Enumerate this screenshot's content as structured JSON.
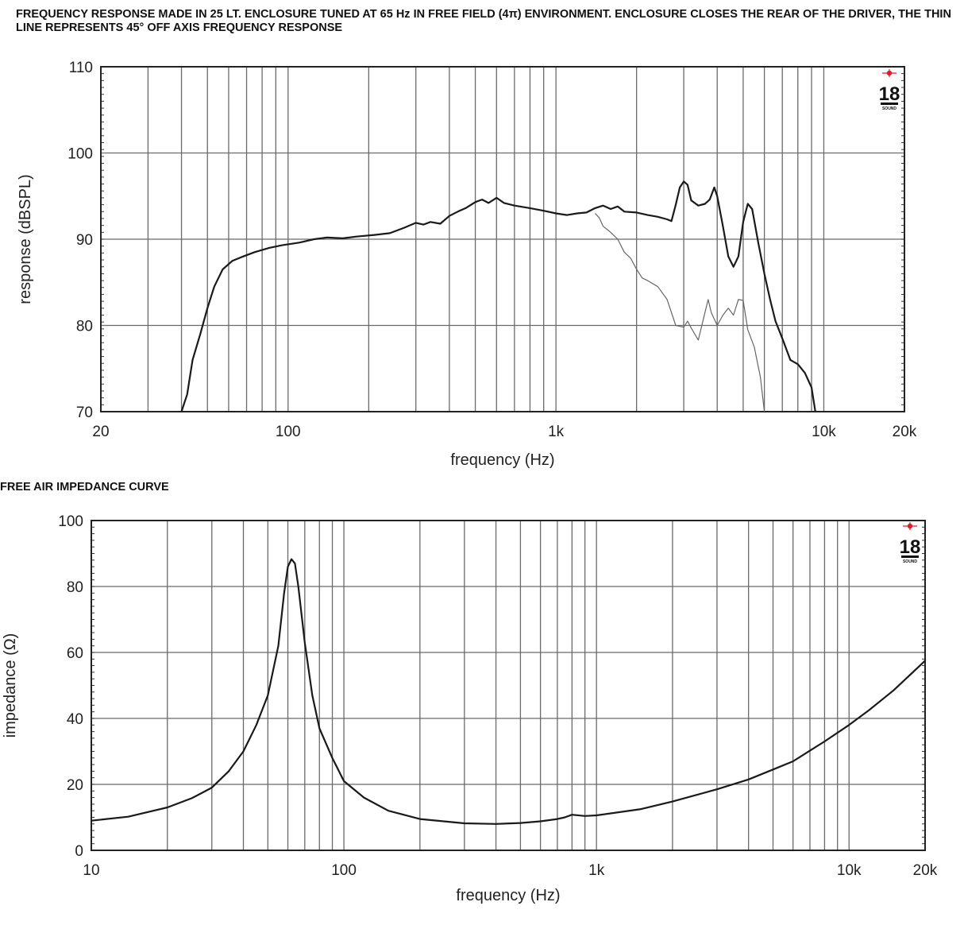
{
  "chart_data": [
    {
      "id": "frequency-response",
      "type": "line",
      "title": "FREQUENCY RESPONSE MADE IN 25 LT. ENCLOSURE TUNED AT 65 Hz IN FREE FIELD (4π) ENVIRONMENT. ENCLOSURE CLOSES THE REAR OF THE DRIVER, THE THIN LINE REPRESENTS 45° OFF AXIS FREQUENCY RESPONSE",
      "xlabel": "frequency (Hz)",
      "ylabel": "response (dBSPL)",
      "xscale": "log",
      "xlim": [
        20,
        20000
      ],
      "ylim": [
        70,
        110
      ],
      "xticks": [
        {
          "value": 20,
          "label": "20"
        },
        {
          "value": 100,
          "label": "100"
        },
        {
          "value": 1000,
          "label": "1k"
        },
        {
          "value": 10000,
          "label": "10k"
        },
        {
          "value": 20000,
          "label": "20k"
        }
      ],
      "yticks": [
        {
          "value": 70,
          "label": "70"
        },
        {
          "value": 80,
          "label": "80"
        },
        {
          "value": 90,
          "label": "90"
        },
        {
          "value": 100,
          "label": "100"
        },
        {
          "value": 110,
          "label": "110"
        }
      ],
      "grid": true,
      "logo": {
        "number": "18",
        "text": "SOUND",
        "accent": "#d8212a"
      },
      "series": [
        {
          "style": "thick",
          "color": "#1a1a1a",
          "points": [
            [
              40,
              70
            ],
            [
              42,
              72
            ],
            [
              44,
              76
            ],
            [
              47,
              79
            ],
            [
              50,
              82
            ],
            [
              53,
              84.5
            ],
            [
              57,
              86.5
            ],
            [
              62,
              87.5
            ],
            [
              68,
              88
            ],
            [
              75,
              88.5
            ],
            [
              85,
              89
            ],
            [
              95,
              89.3
            ],
            [
              110,
              89.6
            ],
            [
              125,
              90
            ],
            [
              140,
              90.2
            ],
            [
              160,
              90.1
            ],
            [
              180,
              90.3
            ],
            [
              210,
              90.5
            ],
            [
              240,
              90.7
            ],
            [
              270,
              91.3
            ],
            [
              300,
              91.9
            ],
            [
              320,
              91.7
            ],
            [
              340,
              92
            ],
            [
              370,
              91.8
            ],
            [
              400,
              92.7
            ],
            [
              430,
              93.2
            ],
            [
              460,
              93.6
            ],
            [
              500,
              94.3
            ],
            [
              530,
              94.6
            ],
            [
              560,
              94.2
            ],
            [
              600,
              94.8
            ],
            [
              640,
              94.2
            ],
            [
              700,
              93.9
            ],
            [
              800,
              93.6
            ],
            [
              900,
              93.3
            ],
            [
              1000,
              93
            ],
            [
              1100,
              92.8
            ],
            [
              1200,
              93
            ],
            [
              1300,
              93.1
            ],
            [
              1400,
              93.6
            ],
            [
              1500,
              93.9
            ],
            [
              1600,
              93.5
            ],
            [
              1700,
              93.8
            ],
            [
              1800,
              93.2
            ],
            [
              2000,
              93.1
            ],
            [
              2200,
              92.8
            ],
            [
              2400,
              92.6
            ],
            [
              2600,
              92.3
            ],
            [
              2700,
              92.1
            ],
            [
              2800,
              94
            ],
            [
              2900,
              96
            ],
            [
              3000,
              96.7
            ],
            [
              3100,
              96.3
            ],
            [
              3200,
              94.5
            ],
            [
              3400,
              93.9
            ],
            [
              3600,
              94.1
            ],
            [
              3750,
              94.6
            ],
            [
              3900,
              96
            ],
            [
              4000,
              95
            ],
            [
              4200,
              91.5
            ],
            [
              4400,
              88
            ],
            [
              4600,
              86.8
            ],
            [
              4800,
              88
            ],
            [
              5000,
              92
            ],
            [
              5200,
              94.1
            ],
            [
              5400,
              93.5
            ],
            [
              5700,
              89.5
            ],
            [
              6000,
              86
            ],
            [
              6300,
              83
            ],
            [
              6600,
              80.5
            ],
            [
              7000,
              78.5
            ],
            [
              7500,
              76
            ],
            [
              8000,
              75.5
            ],
            [
              8500,
              74.5
            ],
            [
              9000,
              72.8
            ],
            [
              9300,
              70
            ]
          ]
        },
        {
          "style": "thin",
          "color": "#666666",
          "points": [
            [
              1400,
              93
            ],
            [
              1450,
              92.5
            ],
            [
              1500,
              91.5
            ],
            [
              1600,
              90.8
            ],
            [
              1700,
              90
            ],
            [
              1800,
              88.5
            ],
            [
              1900,
              87.8
            ],
            [
              2000,
              86.5
            ],
            [
              2100,
              85.5
            ],
            [
              2200,
              85.2
            ],
            [
              2400,
              84.5
            ],
            [
              2600,
              83
            ],
            [
              2800,
              80
            ],
            [
              3000,
              79.8
            ],
            [
              3100,
              80.5
            ],
            [
              3200,
              79.7
            ],
            [
              3400,
              78.3
            ],
            [
              3600,
              81.5
            ],
            [
              3700,
              83
            ],
            [
              3800,
              81.5
            ],
            [
              4000,
              80
            ],
            [
              4200,
              81.2
            ],
            [
              4400,
              82
            ],
            [
              4600,
              81.2
            ],
            [
              4800,
              83
            ],
            [
              5000,
              82.9
            ],
            [
              5200,
              79.5
            ],
            [
              5500,
              77.5
            ],
            [
              5800,
              74
            ],
            [
              6000,
              70
            ]
          ]
        }
      ]
    },
    {
      "id": "impedance",
      "type": "line",
      "title": "FREE AIR IMPEDANCE CURVE",
      "xlabel": "frequency (Hz)",
      "ylabel": "impedance (Ω)",
      "xscale": "log",
      "xlim": [
        10,
        20000
      ],
      "ylim": [
        0,
        100
      ],
      "xticks": [
        {
          "value": 10,
          "label": "10"
        },
        {
          "value": 100,
          "label": "100"
        },
        {
          "value": 1000,
          "label": "1k"
        },
        {
          "value": 10000,
          "label": "10k"
        },
        {
          "value": 20000,
          "label": "20k"
        }
      ],
      "yticks": [
        {
          "value": 0,
          "label": "0"
        },
        {
          "value": 20,
          "label": "20"
        },
        {
          "value": 40,
          "label": "40"
        },
        {
          "value": 60,
          "label": "60"
        },
        {
          "value": 80,
          "label": "80"
        },
        {
          "value": 100,
          "label": "100"
        }
      ],
      "grid": true,
      "logo": {
        "number": "18",
        "text": "SOUND",
        "accent": "#d8212a"
      },
      "series": [
        {
          "style": "thick",
          "color": "#1a1a1a",
          "points": [
            [
              10,
              9
            ],
            [
              14,
              10.2
            ],
            [
              20,
              13
            ],
            [
              25,
              15.8
            ],
            [
              30,
              19
            ],
            [
              35,
              24
            ],
            [
              40,
              30
            ],
            [
              45,
              38
            ],
            [
              50,
              47
            ],
            [
              55,
              62
            ],
            [
              58,
              78
            ],
            [
              60,
              86
            ],
            [
              62,
              88.3
            ],
            [
              64,
              87
            ],
            [
              66,
              80
            ],
            [
              70,
              63
            ],
            [
              75,
              47
            ],
            [
              80,
              37
            ],
            [
              90,
              28
            ],
            [
              100,
              21
            ],
            [
              120,
              16
            ],
            [
              150,
              12
            ],
            [
              200,
              9.5
            ],
            [
              300,
              8.2
            ],
            [
              400,
              8
            ],
            [
              500,
              8.3
            ],
            [
              600,
              8.8
            ],
            [
              700,
              9.5
            ],
            [
              750,
              10
            ],
            [
              800,
              10.8
            ],
            [
              900,
              10.4
            ],
            [
              1000,
              10.6
            ],
            [
              1500,
              12.5
            ],
            [
              2000,
              14.8
            ],
            [
              3000,
              18.5
            ],
            [
              4000,
              21.5
            ],
            [
              5000,
              24.5
            ],
            [
              6000,
              27
            ],
            [
              8000,
              33
            ],
            [
              10000,
              38
            ],
            [
              12000,
              42.5
            ],
            [
              15000,
              48.5
            ],
            [
              20000,
              57.5
            ]
          ]
        }
      ]
    }
  ]
}
